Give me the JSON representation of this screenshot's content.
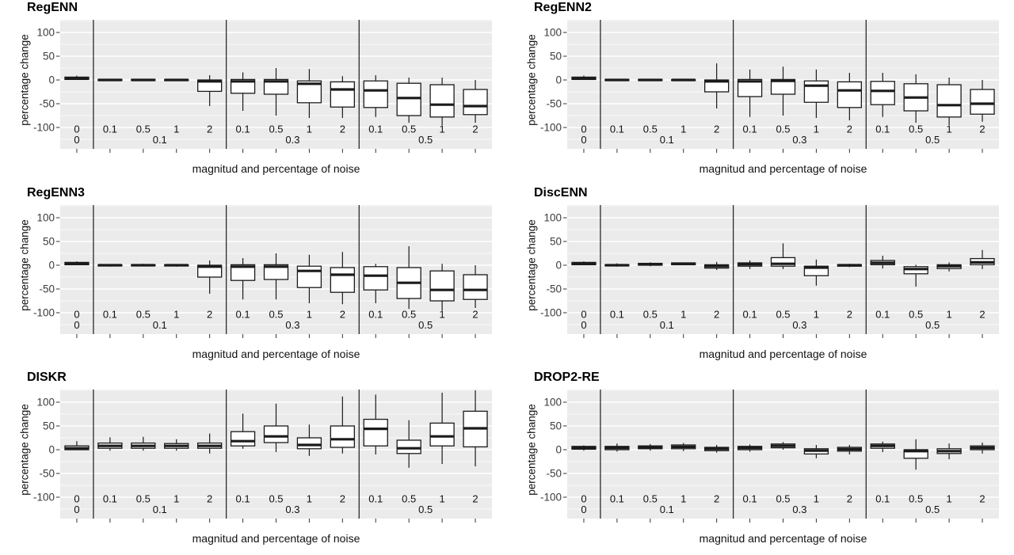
{
  "figure": {
    "x_axis_title": "magnitud and percentage of noise",
    "y_axis_title": "percentage change"
  },
  "style": {
    "panel_bg": "#ebebeb",
    "grid_color": "#ffffff",
    "separator_color": "#2b2b2b",
    "box_stroke": "#1a1a1a",
    "box_fill": "#ffffff",
    "tick_color": "#333333",
    "tick_label_color": "#3c3c3c",
    "inner_label_color": "#111111"
  },
  "chart_data": [
    {
      "type": "boxplot",
      "title": "RegENN",
      "xlabel": "magnitud and percentage of noise",
      "ylabel": "percentage change",
      "ylim": [
        -145,
        127
      ],
      "yticks": [
        -100,
        -50,
        0,
        50,
        100
      ],
      "grid_step": 25,
      "legend": "none",
      "categories": [
        "0",
        "0.1",
        "0.5",
        "1",
        "2",
        "0.1",
        "0.5",
        "1",
        "2",
        "0.1",
        "0.5",
        "1",
        "2"
      ],
      "groups": [
        {
          "label": "0",
          "span": 1
        },
        {
          "label": "0.1",
          "span": 4
        },
        {
          "label": "0.3",
          "span": 4
        },
        {
          "label": "0.5",
          "span": 4
        }
      ],
      "boxes": [
        [
          0,
          1,
          3,
          6,
          9
        ],
        [
          -2,
          -1,
          0,
          1,
          2
        ],
        [
          -2,
          -1,
          0,
          1,
          2
        ],
        [
          -1,
          -0.5,
          0,
          0.5,
          1
        ],
        [
          -55,
          -24,
          -3,
          0,
          10
        ],
        [
          -65,
          -28,
          -3,
          1,
          16
        ],
        [
          -75,
          -30,
          -3,
          1,
          25
        ],
        [
          -80,
          -48,
          -8,
          -2,
          23
        ],
        [
          -80,
          -57,
          -20,
          -4,
          8
        ],
        [
          -78,
          -58,
          -22,
          -2,
          10
        ],
        [
          -90,
          -75,
          -38,
          -7,
          5
        ],
        [
          -95,
          -78,
          -52,
          -10,
          5
        ],
        [
          -90,
          -73,
          -55,
          -20,
          0
        ]
      ]
    },
    {
      "type": "boxplot",
      "title": "RegENN2",
      "xlabel": "magnitud and percentage of noise",
      "ylabel": "percentage change",
      "ylim": [
        -145,
        127
      ],
      "yticks": [
        -100,
        -50,
        0,
        50,
        100
      ],
      "grid_step": 25,
      "legend": "none",
      "categories": [
        "0",
        "0.1",
        "0.5",
        "1",
        "2",
        "0.1",
        "0.5",
        "1",
        "2",
        "0.1",
        "0.5",
        "1",
        "2"
      ],
      "groups": [
        {
          "label": "0",
          "span": 1
        },
        {
          "label": "0.1",
          "span": 4
        },
        {
          "label": "0.3",
          "span": 4
        },
        {
          "label": "0.5",
          "span": 4
        }
      ],
      "boxes": [
        [
          0,
          1,
          3,
          6,
          9
        ],
        [
          -2,
          -1,
          0,
          1,
          2
        ],
        [
          -2,
          -1,
          0,
          1,
          2
        ],
        [
          -1,
          -0.5,
          0,
          0.5,
          1
        ],
        [
          -60,
          -25,
          -3,
          0,
          35
        ],
        [
          -78,
          -35,
          -3,
          1,
          22
        ],
        [
          -75,
          -30,
          -2,
          1,
          28
        ],
        [
          -80,
          -47,
          -12,
          -2,
          22
        ],
        [
          -85,
          -58,
          -22,
          -4,
          15
        ],
        [
          -78,
          -52,
          -23,
          -3,
          15
        ],
        [
          -90,
          -65,
          -37,
          -8,
          12
        ],
        [
          -95,
          -78,
          -53,
          -10,
          5
        ],
        [
          -88,
          -72,
          -50,
          -20,
          0
        ]
      ]
    },
    {
      "type": "boxplot",
      "title": "RegENN3",
      "xlabel": "magnitud and percentage of noise",
      "ylabel": "percentage change",
      "ylim": [
        -145,
        127
      ],
      "yticks": [
        -100,
        -50,
        0,
        50,
        100
      ],
      "grid_step": 25,
      "legend": "none",
      "categories": [
        "0",
        "0.1",
        "0.5",
        "1",
        "2",
        "0.1",
        "0.5",
        "1",
        "2",
        "0.1",
        "0.5",
        "1",
        "2"
      ],
      "groups": [
        {
          "label": "0",
          "span": 1
        },
        {
          "label": "0.1",
          "span": 4
        },
        {
          "label": "0.3",
          "span": 4
        },
        {
          "label": "0.5",
          "span": 4
        }
      ],
      "boxes": [
        [
          0,
          1,
          3,
          6,
          8
        ],
        [
          -3,
          -1.5,
          0,
          0.5,
          2
        ],
        [
          -2,
          -1,
          0,
          1,
          3
        ],
        [
          -3,
          -1.5,
          0,
          0.5,
          2
        ],
        [
          -60,
          -25,
          -3,
          0,
          10
        ],
        [
          -72,
          -32,
          -3,
          1,
          15
        ],
        [
          -72,
          -30,
          -3,
          1,
          25
        ],
        [
          -80,
          -47,
          -12,
          -2,
          22
        ],
        [
          -82,
          -57,
          -20,
          -5,
          28
        ],
        [
          -80,
          -52,
          -22,
          -3,
          3
        ],
        [
          -92,
          -70,
          -37,
          -5,
          40
        ],
        [
          -95,
          -75,
          -52,
          -12,
          3
        ],
        [
          -90,
          -72,
          -52,
          -20,
          0
        ]
      ]
    },
    {
      "type": "boxplot",
      "title": "DiscENN",
      "xlabel": "magnitud and percentage of noise",
      "ylabel": "percentage change",
      "ylim": [
        -145,
        127
      ],
      "yticks": [
        -100,
        -50,
        0,
        50,
        100
      ],
      "grid_step": 25,
      "legend": "none",
      "categories": [
        "0",
        "0.1",
        "0.5",
        "1",
        "2",
        "0.1",
        "0.5",
        "1",
        "2",
        "0.1",
        "0.5",
        "1",
        "2"
      ],
      "groups": [
        {
          "label": "0",
          "span": 1
        },
        {
          "label": "0.1",
          "span": 4
        },
        {
          "label": "0.3",
          "span": 4
        },
        {
          "label": "0.5",
          "span": 4
        }
      ],
      "boxes": [
        [
          0,
          1,
          3,
          6,
          8
        ],
        [
          -3,
          -1,
          0,
          1,
          4
        ],
        [
          -2,
          0,
          2,
          4,
          6
        ],
        [
          0,
          1,
          3,
          5,
          6
        ],
        [
          -10,
          -6,
          -2,
          1,
          7
        ],
        [
          -8,
          -2,
          2,
          5,
          10
        ],
        [
          -8,
          -2,
          3,
          16,
          46
        ],
        [
          -43,
          -22,
          -5,
          -2,
          12
        ],
        [
          -4,
          -2,
          0,
          1,
          3
        ],
        [
          -7,
          1,
          5,
          10,
          20
        ],
        [
          -45,
          -18,
          -8,
          -3,
          1
        ],
        [
          -13,
          -7,
          -2,
          1,
          6
        ],
        [
          -8,
          1,
          6,
          14,
          32
        ]
      ]
    },
    {
      "type": "boxplot",
      "title": "DISKR",
      "xlabel": "magnitud and percentage of noise",
      "ylabel": "percentage change",
      "ylim": [
        -145,
        127
      ],
      "yticks": [
        -100,
        -50,
        0,
        50,
        100
      ],
      "grid_step": 25,
      "legend": "none",
      "categories": [
        "0",
        "0.1",
        "0.5",
        "1",
        "2",
        "0.1",
        "0.5",
        "1",
        "2",
        "0.1",
        "0.5",
        "1",
        "2"
      ],
      "groups": [
        {
          "label": "0",
          "span": 1
        },
        {
          "label": "0.1",
          "span": 4
        },
        {
          "label": "0.3",
          "span": 4
        },
        {
          "label": "0.5",
          "span": 4
        }
      ],
      "boxes": [
        [
          0,
          0,
          3,
          8,
          18
        ],
        [
          -2,
          3,
          8,
          14,
          26
        ],
        [
          -2,
          3,
          8,
          14,
          27
        ],
        [
          -2,
          3,
          8,
          13,
          22
        ],
        [
          -8,
          3,
          8,
          14,
          34
        ],
        [
          2,
          8,
          18,
          38,
          76
        ],
        [
          -5,
          15,
          28,
          50,
          97
        ],
        [
          -13,
          2,
          10,
          25,
          53
        ],
        [
          -8,
          5,
          22,
          50,
          112
        ],
        [
          -10,
          8,
          44,
          64,
          116
        ],
        [
          -38,
          -8,
          3,
          20,
          62
        ],
        [
          -30,
          8,
          28,
          56,
          120
        ],
        [
          -35,
          6,
          45,
          81,
          125
        ]
      ]
    },
    {
      "type": "boxplot",
      "title": "DROP2-RE",
      "xlabel": "magnitud and percentage of noise",
      "ylabel": "percentage change",
      "ylim": [
        -145,
        127
      ],
      "yticks": [
        -100,
        -50,
        0,
        50,
        100
      ],
      "grid_step": 25,
      "legend": "none",
      "categories": [
        "0",
        "0.1",
        "0.5",
        "1",
        "2",
        "0.1",
        "0.5",
        "1",
        "2",
        "0.1",
        "0.5",
        "1",
        "2"
      ],
      "groups": [
        {
          "label": "0",
          "span": 1
        },
        {
          "label": "0.1",
          "span": 4
        },
        {
          "label": "0.3",
          "span": 4
        },
        {
          "label": "0.5",
          "span": 4
        }
      ],
      "boxes": [
        [
          -2,
          1,
          4,
          7,
          9
        ],
        [
          -4,
          0,
          4,
          7,
          13
        ],
        [
          -2,
          2,
          5,
          8,
          12
        ],
        [
          -3,
          2,
          6,
          10,
          14
        ],
        [
          -6,
          -2,
          2,
          5,
          10
        ],
        [
          -4,
          0,
          4,
          7,
          11
        ],
        [
          0,
          4,
          8,
          12,
          16
        ],
        [
          -18,
          -9,
          -2,
          2,
          10
        ],
        [
          -10,
          -3,
          1,
          5,
          10
        ],
        [
          -5,
          3,
          8,
          12,
          17
        ],
        [
          -42,
          -18,
          -3,
          0,
          22
        ],
        [
          -20,
          -8,
          -3,
          2,
          13
        ],
        [
          -8,
          0,
          4,
          8,
          15
        ]
      ]
    }
  ]
}
